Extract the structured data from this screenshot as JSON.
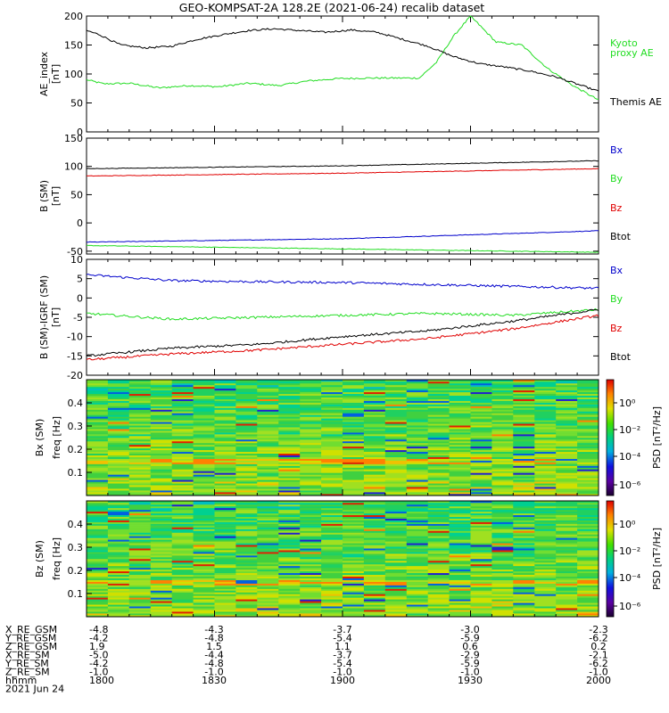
{
  "title": "GEO-KOMPSAT-2A 128.2E (2021-06-24) recalib dataset",
  "colors": {
    "black": "#000000",
    "red": "#e00000",
    "green": "#22dd22",
    "blue": "#0000cc"
  },
  "panels": {
    "ae": {
      "ylabel": [
        "AE_index",
        "[nT]"
      ],
      "yticks": [
        "0",
        "50",
        "100",
        "150",
        "200"
      ],
      "legend": [
        {
          "text": "Kyoto",
          "color": "#22dd22"
        },
        {
          "text": "proxy AE",
          "color": "#22dd22"
        },
        {
          "text": "Themis AE",
          "color": "#000000"
        }
      ]
    },
    "b": {
      "ylabel": [
        "B (SM)",
        "[nT]"
      ],
      "yticks": [
        "-50",
        "0",
        "50",
        "100",
        "150"
      ],
      "legend": [
        {
          "text": "Bx",
          "color": "#0000cc"
        },
        {
          "text": "By",
          "color": "#22dd22"
        },
        {
          "text": "Bz",
          "color": "#e00000"
        },
        {
          "text": "Btot",
          "color": "#000000"
        }
      ]
    },
    "bi": {
      "ylabel": [
        "B (SM)-IGRF (SM)",
        "[nT]"
      ],
      "yticks": [
        "-20",
        "-15",
        "-10",
        "-5",
        "0",
        "5",
        "10"
      ],
      "legend": [
        {
          "text": "Bx",
          "color": "#0000cc"
        },
        {
          "text": "By",
          "color": "#22dd22"
        },
        {
          "text": "Bz",
          "color": "#e00000"
        },
        {
          "text": "Btot",
          "color": "#000000"
        }
      ]
    },
    "specx": {
      "ylabel": [
        "Bx (SM)",
        "freq [Hz]"
      ],
      "yticks": [
        "0.1",
        "0.2",
        "0.3",
        "0.4"
      ],
      "cb_label": "PSD [nT²/Hz]",
      "cb_ticks": [
        "10⁰",
        "10⁻²",
        "10⁻⁴",
        "10⁻⁶"
      ]
    },
    "specz": {
      "ylabel": [
        "Bz (SM)",
        "freq [Hz]"
      ],
      "yticks": [
        "0.1",
        "0.2",
        "0.3",
        "0.4"
      ],
      "cb_label": "PSD [nT²/Hz]",
      "cb_ticks": [
        "10⁰",
        "10⁻²",
        "10⁻⁴",
        "10⁻⁶"
      ]
    }
  },
  "footer": {
    "rows": [
      {
        "label": "X_RE_GSM",
        "values": [
          "-4.8",
          "-4.3",
          "-3.7",
          "-3.0",
          "-2.3"
        ]
      },
      {
        "label": "Y_RE_GSM",
        "values": [
          "-4.2",
          "-4.8",
          "-5.4",
          "-5.9",
          "-6.2"
        ]
      },
      {
        "label": "Z_RE_GSM",
        "values": [
          "1.9",
          "1.5",
          "1.1",
          "0.6",
          "0.2"
        ]
      },
      {
        "label": "X_RE_SM",
        "values": [
          "-5.0",
          "-4.4",
          "-3.7",
          "-2.9",
          "-2.1"
        ]
      },
      {
        "label": "Y_RE_SM",
        "values": [
          "-4.2",
          "-4.8",
          "-5.4",
          "-5.9",
          "-6.2"
        ]
      },
      {
        "label": "Z_RE_SM",
        "values": [
          "-1.0",
          "-1.0",
          "-1.0",
          "-1.0",
          "-1.0"
        ]
      },
      {
        "label": "hhmm",
        "values": [
          "1800",
          "1830",
          "1900",
          "1930",
          "2000"
        ]
      }
    ],
    "date": "2021 Jun 24"
  },
  "chart_data": [
    {
      "type": "line",
      "name": "AE index",
      "ylabel": "AE_index [nT]",
      "ylim": [
        0,
        200
      ],
      "xlim": [
        "18:00",
        "20:00"
      ],
      "series": [
        {
          "name": "Kyoto proxy AE",
          "color": "#22dd22",
          "x": [
            "18:00",
            "18:04",
            "18:10",
            "18:17",
            "18:24",
            "18:31",
            "18:38",
            "18:45",
            "18:52",
            "18:59",
            "19:06",
            "19:12",
            "19:18",
            "19:22",
            "19:26",
            "19:30",
            "19:36",
            "19:42",
            "19:48",
            "19:54",
            "20:00"
          ],
          "y": [
            90,
            83,
            84,
            76,
            80,
            78,
            84,
            80,
            88,
            92,
            93,
            93,
            93,
            120,
            165,
            200,
            155,
            150,
            110,
            80,
            55
          ]
        },
        {
          "name": "Themis AE",
          "color": "#000000",
          "x": [
            "18:00",
            "18:03",
            "18:08",
            "18:14",
            "18:20",
            "18:26",
            "18:32",
            "18:38",
            "18:44",
            "18:50",
            "18:56",
            "19:02",
            "19:08",
            "19:14",
            "19:20",
            "19:26",
            "19:32",
            "19:38",
            "19:44",
            "19:50",
            "19:56",
            "20:00"
          ],
          "y": [
            175,
            168,
            150,
            145,
            148,
            160,
            168,
            175,
            178,
            175,
            172,
            176,
            172,
            160,
            148,
            130,
            118,
            112,
            105,
            95,
            80,
            70
          ]
        }
      ]
    },
    {
      "type": "line",
      "name": "B (SM)",
      "ylabel": "B (SM) [nT]",
      "ylim": [
        -55,
        150
      ],
      "xlim": [
        "18:00",
        "20:00"
      ],
      "series": [
        {
          "name": "Bx",
          "color": "#0000cc",
          "x": [
            "18:00",
            "19:00",
            "20:00"
          ],
          "y": [
            -34,
            -28,
            -14
          ]
        },
        {
          "name": "By",
          "color": "#22dd22",
          "x": [
            "18:00",
            "19:00",
            "20:00"
          ],
          "y": [
            -40,
            -46,
            -52
          ]
        },
        {
          "name": "Bz",
          "color": "#e00000",
          "x": [
            "18:00",
            "19:00",
            "20:00"
          ],
          "y": [
            83,
            88,
            96
          ]
        },
        {
          "name": "Btot",
          "color": "#000000",
          "x": [
            "18:00",
            "19:00",
            "20:00"
          ],
          "y": [
            96,
            101,
            110
          ]
        }
      ]
    },
    {
      "type": "line",
      "name": "B (SM)-IGRF (SM)",
      "ylabel": "B (SM)-IGRF (SM) [nT]",
      "ylim": [
        -20,
        10
      ],
      "xlim": [
        "18:00",
        "20:00"
      ],
      "series": [
        {
          "name": "Bx",
          "color": "#0000cc",
          "x": [
            "18:00",
            "18:20",
            "18:40",
            "19:00",
            "19:20",
            "19:40",
            "20:00"
          ],
          "y": [
            6,
            4.5,
            4.2,
            4,
            3.5,
            3,
            2.5
          ]
        },
        {
          "name": "By",
          "color": "#22dd22",
          "x": [
            "18:00",
            "18:20",
            "18:40",
            "19:00",
            "19:20",
            "19:40",
            "20:00"
          ],
          "y": [
            -4,
            -5.5,
            -5,
            -4.5,
            -4,
            -4.5,
            -3
          ]
        },
        {
          "name": "Bz",
          "color": "#e00000",
          "x": [
            "18:00",
            "18:20",
            "18:40",
            "19:00",
            "19:20",
            "19:40",
            "20:00"
          ],
          "y": [
            -16,
            -14.5,
            -13.5,
            -12,
            -10.5,
            -8,
            -4.5
          ]
        },
        {
          "name": "Btot",
          "color": "#000000",
          "x": [
            "18:00",
            "18:20",
            "18:40",
            "19:00",
            "19:20",
            "19:40",
            "20:00"
          ],
          "y": [
            -15,
            -13,
            -12,
            -10,
            -8.5,
            -6,
            -3
          ]
        }
      ]
    },
    {
      "type": "heatmap",
      "name": "Bx (SM) spectrogram",
      "ylabel": "freq [Hz]",
      "ylim": [
        0,
        0.5
      ],
      "xlim": [
        "18:00",
        "20:00"
      ]
    },
    {
      "type": "heatmap",
      "name": "Bz (SM) spectrogram",
      "ylabel": "freq [Hz]",
      "ylim": [
        0,
        0.5
      ],
      "xlim": [
        "18:00",
        "20:00"
      ]
    }
  ]
}
